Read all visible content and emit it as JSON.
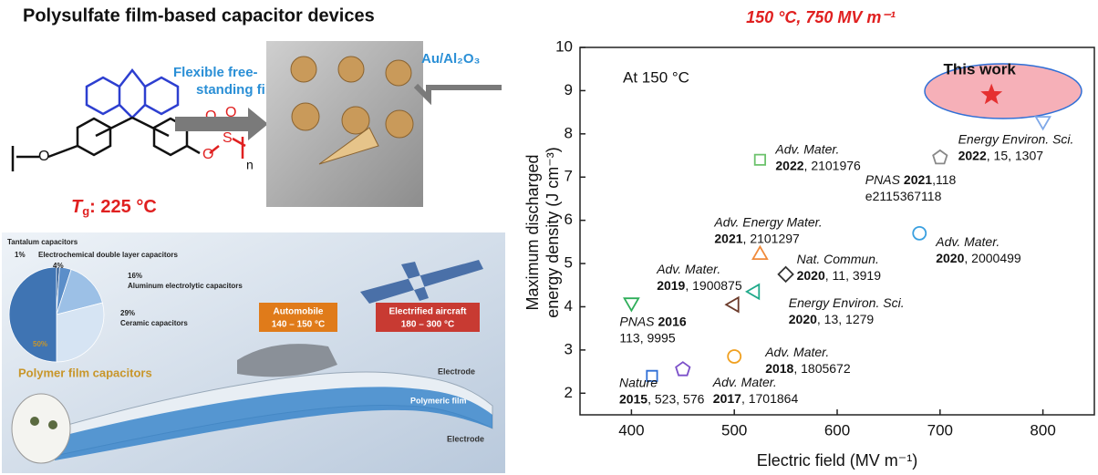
{
  "header": {
    "title": "Polysulfate film-based capacitor devices"
  },
  "structure": {
    "atoms": [
      "O",
      "O",
      "S",
      "O",
      "O",
      "n"
    ],
    "tg_symbol": "T",
    "tg_subscript": "g",
    "tg_value": ": 225 °C"
  },
  "photo": {
    "film_label": "Flexible free-",
    "film_label_2": "standing film",
    "electrode_label": "Au/Al₂O₃"
  },
  "illustration": {
    "automobile": "Automobile",
    "automobile_temp": "140 – 150 °C",
    "aircraft": "Electrified aircraft",
    "aircraft_temp": "180 – 300 °C",
    "layers": [
      "Electrode",
      "Polymeric film",
      "Electrode"
    ]
  },
  "chart_data": [
    {
      "type": "scatter",
      "title": "150 °C, 750 MV m⁻¹",
      "annotation": "At 150 °C",
      "x_label": "Electric field (MV m⁻¹)",
      "y_label": [
        "Maximum discharged",
        "energy density (J cm⁻³)"
      ],
      "xlim": [
        350,
        850
      ],
      "ylim": [
        1.5,
        10
      ],
      "xticks": [
        400,
        500,
        600,
        700,
        800
      ],
      "yticks": [
        2,
        3,
        4,
        5,
        6,
        7,
        8,
        9,
        10
      ],
      "series": [
        {
          "journal": "Nature",
          "year": "2015",
          "ref": ", 523, 576",
          "marker": "square",
          "color": "#2f6fd6",
          "x": [
            420
          ],
          "values": [
            2.4
          ]
        },
        {
          "journal": "Adv. Mater.",
          "year": "2017",
          "ref": ", 1701864",
          "marker": "pentagon",
          "color": "#7b4fc9",
          "x": [
            450
          ],
          "values": [
            2.55
          ]
        },
        {
          "journal": "Adv. Mater.",
          "year": "2018",
          "ref": ", 1805672",
          "marker": "circle",
          "color": "#f0a020",
          "x": [
            500
          ],
          "values": [
            2.85
          ]
        },
        {
          "journal": "PNAS",
          "year": "2016",
          "ref": "113, 9995",
          "marker": "triangle-down",
          "color": "#2fae5a",
          "x": [
            400
          ],
          "values": [
            4.1
          ]
        },
        {
          "journal": "Adv. Mater.",
          "year": "2019",
          "ref": ", 1900875",
          "marker": "triangle-left",
          "color": "#6b3a2a",
          "x": [
            500
          ],
          "values": [
            4.05
          ]
        },
        {
          "journal": "Energy Environ. Sci.",
          "year": "2020",
          "ref": ", 13, 1279",
          "marker": "triangle-left",
          "color": "#1fa98a",
          "x": [
            520
          ],
          "values": [
            4.35
          ]
        },
        {
          "journal": "Nat. Commun.",
          "year": "2020",
          "ref": ", 11, 3919",
          "marker": "diamond",
          "color": "#333333",
          "x": [
            550
          ],
          "values": [
            4.75
          ]
        },
        {
          "journal": "Adv. Energy Mater.",
          "year": "2021",
          "ref": ", 2101297",
          "marker": "triangle-up",
          "color": "#f08a3a",
          "x": [
            525
          ],
          "values": [
            5.2
          ]
        },
        {
          "journal": "Adv. Mater.",
          "year": "2020",
          "ref": ", 2000499",
          "marker": "circle",
          "color": "#3aa0e0",
          "x": [
            680
          ],
          "values": [
            5.7
          ]
        },
        {
          "journal": "Adv. Mater.",
          "year": "2022",
          "ref": ", 2101976",
          "marker": "square",
          "color": "#6cc26c",
          "x": [
            525
          ],
          "values": [
            7.4
          ]
        },
        {
          "journal": "PNAS",
          "year": "2021",
          "ref": ",118",
          "ref2": "e2115367118",
          "marker": "pentagon",
          "color": "#888888",
          "x": [
            700
          ],
          "values": [
            7.45
          ]
        },
        {
          "journal": "Energy Environ. Sci.",
          "year": "2022",
          "ref": ", 15, 1307",
          "marker": "triangle-down",
          "color": "#7fa8e8",
          "x": [
            800
          ],
          "values": [
            8.3
          ]
        },
        {
          "name": "This work",
          "marker": "star",
          "color": "#e53030",
          "x": [
            750
          ],
          "values": [
            8.9
          ]
        }
      ]
    },
    {
      "type": "pie",
      "categories": [
        "Tantalum capacitors",
        "Electrochemical double layer capacitors",
        "Aluminum electrolytic capacitors",
        "Ceramic capacitors",
        "Polymer film capacitors"
      ],
      "values": [
        1,
        4,
        16,
        29,
        50
      ],
      "value_labels": [
        "1%",
        "4%",
        "16%",
        "29%",
        "50%"
      ],
      "colors": [
        "#1f4e8a",
        "#5b8ec9",
        "#9cc0e6",
        "#d6e4f3",
        "#3f74b3"
      ]
    }
  ]
}
